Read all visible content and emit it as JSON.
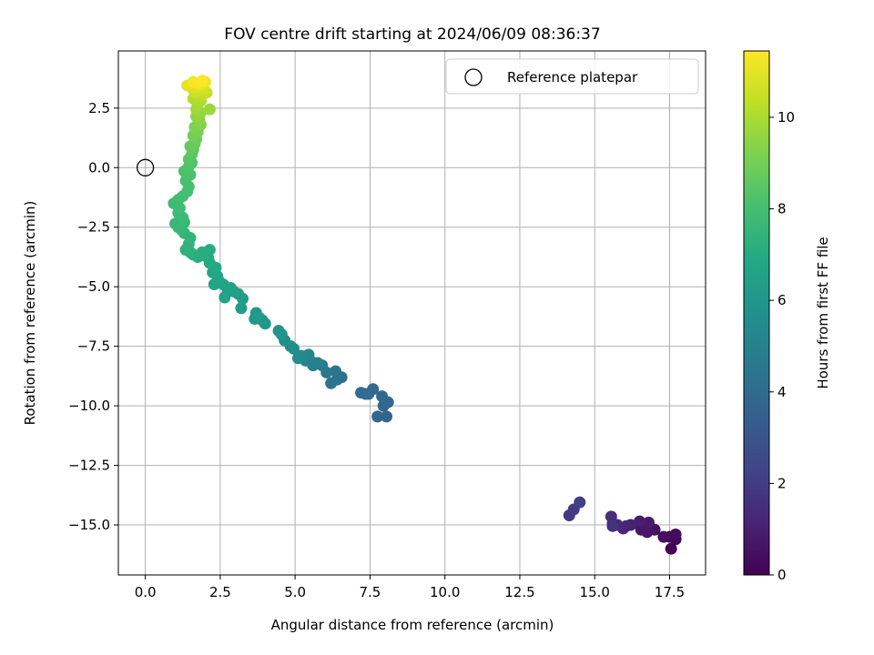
{
  "chart_data": {
    "type": "scatter",
    "title": "FOV centre drift starting at 2024/06/09 08:36:37",
    "xlabel": "Angular distance from reference (arcmin)",
    "ylabel": "Rotation from reference (arcmin)",
    "xlim": [
      -0.9,
      18.7
    ],
    "ylim": [
      -17.1,
      4.9
    ],
    "xticks": [
      0.0,
      2.5,
      5.0,
      7.5,
      10.0,
      12.5,
      15.0,
      17.5
    ],
    "xtick_labels": [
      "0.0",
      "2.5",
      "5.0",
      "7.5",
      "10.0",
      "12.5",
      "15.0",
      "17.5"
    ],
    "yticks": [
      2.5,
      0.0,
      -2.5,
      -5.0,
      -7.5,
      -10.0,
      -12.5,
      -15.0
    ],
    "ytick_labels": [
      "2.5",
      "0.0",
      "−2.5",
      "−5.0",
      "−7.5",
      "−10.0",
      "−12.5",
      "−15.0"
    ],
    "grid": true,
    "legend": {
      "placement": "upper right",
      "entries": [
        "Reference platepar"
      ]
    },
    "colorbar": {
      "label": "Hours from first FF file",
      "colormap": "viridis",
      "range": [
        0,
        11.45
      ],
      "ticks": [
        0,
        2,
        4,
        6,
        8,
        10
      ],
      "tick_labels": [
        "0",
        "2",
        "4",
        "6",
        "8",
        "10"
      ]
    },
    "reference_point": {
      "x": 0.0,
      "y": 0.0,
      "name": "Reference platepar"
    },
    "series": [
      {
        "points": [
          [
            17.55,
            -16.0,
            0.05
          ],
          [
            17.7,
            -15.6,
            0.15
          ],
          [
            17.5,
            -15.5,
            0.25
          ],
          [
            17.7,
            -15.4,
            0.35
          ],
          [
            17.3,
            -15.5,
            0.45
          ],
          [
            17.0,
            -15.2,
            0.55
          ],
          [
            16.75,
            -15.3,
            0.65
          ],
          [
            16.55,
            -15.2,
            0.75
          ],
          [
            16.8,
            -14.9,
            0.85
          ],
          [
            16.5,
            -14.85,
            0.95
          ],
          [
            16.2,
            -15.0,
            1.05
          ],
          [
            16.05,
            -15.05,
            1.15
          ],
          [
            15.95,
            -15.15,
            1.25
          ],
          [
            15.75,
            -15.0,
            1.35
          ],
          [
            15.6,
            -14.95,
            1.45
          ],
          [
            15.55,
            -14.65,
            1.55
          ],
          [
            15.6,
            -15.05,
            1.65
          ],
          [
            14.15,
            -14.6,
            1.8
          ],
          [
            14.3,
            -14.35,
            1.95
          ],
          [
            14.5,
            -14.05,
            2.1
          ],
          [
            8.05,
            -10.45,
            3.7
          ],
          [
            7.75,
            -10.45,
            3.75
          ],
          [
            7.95,
            -10.0,
            3.8
          ],
          [
            8.1,
            -9.85,
            3.85
          ],
          [
            7.9,
            -9.6,
            3.9
          ],
          [
            7.6,
            -9.3,
            3.95
          ],
          [
            7.45,
            -9.5,
            4.0
          ],
          [
            7.35,
            -9.5,
            4.05
          ],
          [
            7.2,
            -9.45,
            4.1
          ],
          [
            6.55,
            -8.8,
            4.2
          ],
          [
            6.4,
            -8.9,
            4.3
          ],
          [
            6.2,
            -9.05,
            4.4
          ],
          [
            6.35,
            -8.55,
            4.5
          ],
          [
            6.05,
            -8.6,
            4.6
          ],
          [
            5.9,
            -8.3,
            4.7
          ],
          [
            5.75,
            -8.2,
            4.8
          ],
          [
            5.6,
            -8.3,
            4.9
          ],
          [
            5.5,
            -8.1,
            5.0
          ],
          [
            5.35,
            -8.1,
            5.1
          ],
          [
            5.45,
            -7.85,
            5.2
          ],
          [
            5.2,
            -7.9,
            5.3
          ],
          [
            5.1,
            -8.0,
            5.4
          ],
          [
            4.95,
            -7.6,
            5.5
          ],
          [
            4.85,
            -7.5,
            5.6
          ],
          [
            4.65,
            -7.25,
            5.7
          ],
          [
            4.55,
            -7.0,
            5.8
          ],
          [
            4.45,
            -6.85,
            5.9
          ],
          [
            4.0,
            -6.55,
            6.0
          ],
          [
            3.9,
            -6.4,
            6.05
          ],
          [
            3.7,
            -6.1,
            6.1
          ],
          [
            3.8,
            -6.3,
            6.15
          ],
          [
            3.65,
            -6.35,
            6.2
          ],
          [
            3.2,
            -5.9,
            6.25
          ],
          [
            3.25,
            -5.5,
            6.3
          ],
          [
            3.1,
            -5.3,
            6.35
          ],
          [
            2.95,
            -5.2,
            6.4
          ],
          [
            2.85,
            -5.05,
            6.45
          ],
          [
            2.75,
            -5.2,
            6.5
          ],
          [
            2.65,
            -5.45,
            6.55
          ],
          [
            2.6,
            -4.9,
            6.6
          ],
          [
            2.45,
            -4.75,
            6.65
          ],
          [
            2.3,
            -4.9,
            6.7
          ],
          [
            2.4,
            -4.55,
            6.75
          ],
          [
            2.25,
            -4.4,
            6.8
          ],
          [
            2.35,
            -4.2,
            6.85
          ],
          [
            2.15,
            -4.0,
            6.9
          ],
          [
            2.1,
            -3.8,
            6.95
          ],
          [
            2.0,
            -3.7,
            7.0
          ],
          [
            2.15,
            -3.45,
            7.05
          ],
          [
            1.9,
            -3.55,
            7.1
          ],
          [
            1.75,
            -3.75,
            7.15
          ],
          [
            1.6,
            -3.65,
            7.2
          ],
          [
            1.5,
            -3.55,
            7.25
          ],
          [
            1.35,
            -3.45,
            7.3
          ],
          [
            1.45,
            -3.2,
            7.35
          ],
          [
            1.5,
            -2.95,
            7.4
          ],
          [
            1.3,
            -2.75,
            7.45
          ],
          [
            1.1,
            -2.5,
            7.5
          ],
          [
            1.2,
            -2.6,
            7.55
          ],
          [
            1.0,
            -2.35,
            7.6
          ],
          [
            1.3,
            -2.3,
            7.65
          ],
          [
            1.25,
            -2.1,
            7.7
          ],
          [
            1.1,
            -1.9,
            7.75
          ],
          [
            1.15,
            -1.7,
            7.8
          ],
          [
            0.95,
            -1.5,
            7.85
          ],
          [
            1.1,
            -1.35,
            7.9
          ],
          [
            1.25,
            -1.2,
            7.95
          ],
          [
            1.4,
            -1.0,
            8.0
          ],
          [
            1.45,
            -0.8,
            8.05
          ],
          [
            1.35,
            -0.55,
            8.1
          ],
          [
            1.5,
            -0.3,
            8.15
          ],
          [
            1.3,
            -0.15,
            8.2
          ],
          [
            1.45,
            0.05,
            8.25
          ],
          [
            1.55,
            0.2,
            8.3
          ],
          [
            1.45,
            0.35,
            8.4
          ],
          [
            1.55,
            0.55,
            8.5
          ],
          [
            1.6,
            0.75,
            8.6
          ],
          [
            1.5,
            0.9,
            8.7
          ],
          [
            1.65,
            1.0,
            8.8
          ],
          [
            1.7,
            1.2,
            8.9
          ],
          [
            1.6,
            1.35,
            9.0
          ],
          [
            1.75,
            1.5,
            9.1
          ],
          [
            1.65,
            1.7,
            9.2
          ],
          [
            1.85,
            1.8,
            9.3
          ],
          [
            1.8,
            2.0,
            9.4
          ],
          [
            1.7,
            2.15,
            9.5
          ],
          [
            1.85,
            2.3,
            9.6
          ],
          [
            2.15,
            2.45,
            9.7
          ],
          [
            1.7,
            2.45,
            9.8
          ],
          [
            1.75,
            2.65,
            9.9
          ],
          [
            1.85,
            2.8,
            10.0
          ],
          [
            1.6,
            2.9,
            10.1
          ],
          [
            1.75,
            3.0,
            10.2
          ],
          [
            1.9,
            3.05,
            10.3
          ],
          [
            2.05,
            3.15,
            10.4
          ],
          [
            1.65,
            3.15,
            10.5
          ],
          [
            1.8,
            3.25,
            10.6
          ],
          [
            1.95,
            3.3,
            10.7
          ],
          [
            1.55,
            3.35,
            10.8
          ],
          [
            1.7,
            3.4,
            10.9
          ],
          [
            1.4,
            3.45,
            11.0
          ],
          [
            1.85,
            3.5,
            11.1
          ],
          [
            2.0,
            3.6,
            11.2
          ],
          [
            1.75,
            3.55,
            11.3
          ],
          [
            1.6,
            3.6,
            11.35
          ],
          [
            1.9,
            3.65,
            11.4
          ]
        ]
      }
    ]
  }
}
